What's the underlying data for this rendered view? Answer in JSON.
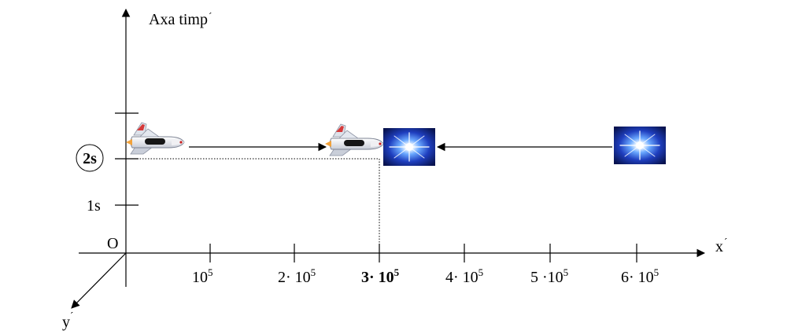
{
  "axes": {
    "vertical_label": "Axa timp",
    "horizontal_label": "x",
    "depth_label": "y",
    "prime_mark": "´",
    "origin_label": "O"
  },
  "time_ticks": [
    {
      "label": "1s",
      "highlight": false
    },
    {
      "label": "2s",
      "highlight": true
    }
  ],
  "space_ticks": [
    {
      "coef": "",
      "exp": "5",
      "bold": false
    },
    {
      "coef": "2· 10",
      "exp": "5",
      "bold": false
    },
    {
      "coef": "3· 10",
      "exp": "5",
      "bold": true
    },
    {
      "coef": "4· 10",
      "exp": "5",
      "bold": false
    },
    {
      "coef": "5 ·10",
      "exp": "5",
      "bold": false
    },
    {
      "coef": "6· 10",
      "exp": "5",
      "bold": false
    }
  ],
  "first_tick_base": "10",
  "colors": {
    "highlight_text": "#b01818",
    "axis": "#000000",
    "glow_core": "#ffffff",
    "glow_edge": "#0a1a6e"
  },
  "icons": [
    "space-shuttle-icon",
    "light-flash-icon"
  ]
}
